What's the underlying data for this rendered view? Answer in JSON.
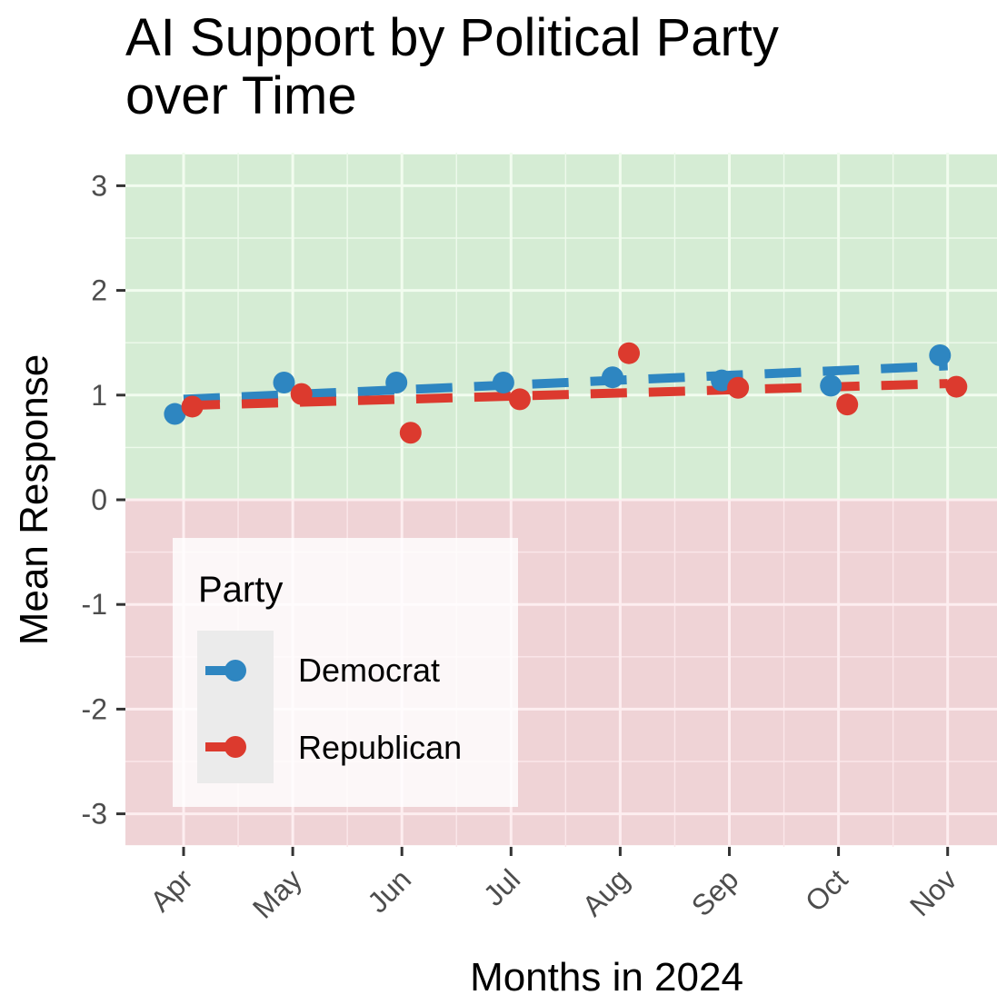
{
  "title_lines": [
    "AI Support by Political Party",
    "over Time"
  ],
  "chart_data": {
    "type": "line",
    "title": "AI Support by Political Party over Time",
    "xlabel": "Months in 2024",
    "ylabel": "Mean Response",
    "categories": [
      "Apr",
      "May",
      "Jun",
      "Jul",
      "Aug",
      "Sep",
      "Oct",
      "Nov"
    ],
    "ylim": [
      -3.3,
      3.3
    ],
    "yticks": [
      3,
      2,
      1,
      0,
      -1,
      -2,
      -3
    ],
    "grid": true,
    "background_bands": [
      {
        "from": 0,
        "to": 3.3,
        "color": "#d5ecd4"
      },
      {
        "from": -3.3,
        "to": 0,
        "color": "#efd3d6"
      }
    ],
    "series": [
      {
        "name": "Democrat",
        "color": "#2e86c1",
        "points": [
          {
            "x": -0.08,
            "y": 0.82
          },
          {
            "x": 0.92,
            "y": 1.12
          },
          {
            "x": 1.95,
            "y": 1.12
          },
          {
            "x": 2.93,
            "y": 1.12
          },
          {
            "x": 3.93,
            "y": 1.17
          },
          {
            "x": 4.93,
            "y": 1.14
          },
          {
            "x": 5.93,
            "y": 1.09
          },
          {
            "x": 6.93,
            "y": 1.38
          }
        ],
        "trend": {
          "x0": 0.0,
          "y0": 0.96,
          "x1": 7.0,
          "y1": 1.28
        }
      },
      {
        "name": "Republican",
        "color": "#dc3a2e",
        "points": [
          {
            "x": 0.08,
            "y": 0.89
          },
          {
            "x": 1.08,
            "y": 1.01
          },
          {
            "x": 2.08,
            "y": 0.64
          },
          {
            "x": 3.08,
            "y": 0.96
          },
          {
            "x": 4.08,
            "y": 1.4
          },
          {
            "x": 5.08,
            "y": 1.07
          },
          {
            "x": 6.08,
            "y": 0.91
          },
          {
            "x": 7.08,
            "y": 1.08
          }
        ],
        "trend": {
          "x0": 0.0,
          "y0": 0.9,
          "x1": 7.0,
          "y1": 1.11
        }
      }
    ],
    "legend": {
      "title": "Party",
      "position": "bottom-left",
      "entries": [
        "Democrat",
        "Republican"
      ]
    }
  }
}
